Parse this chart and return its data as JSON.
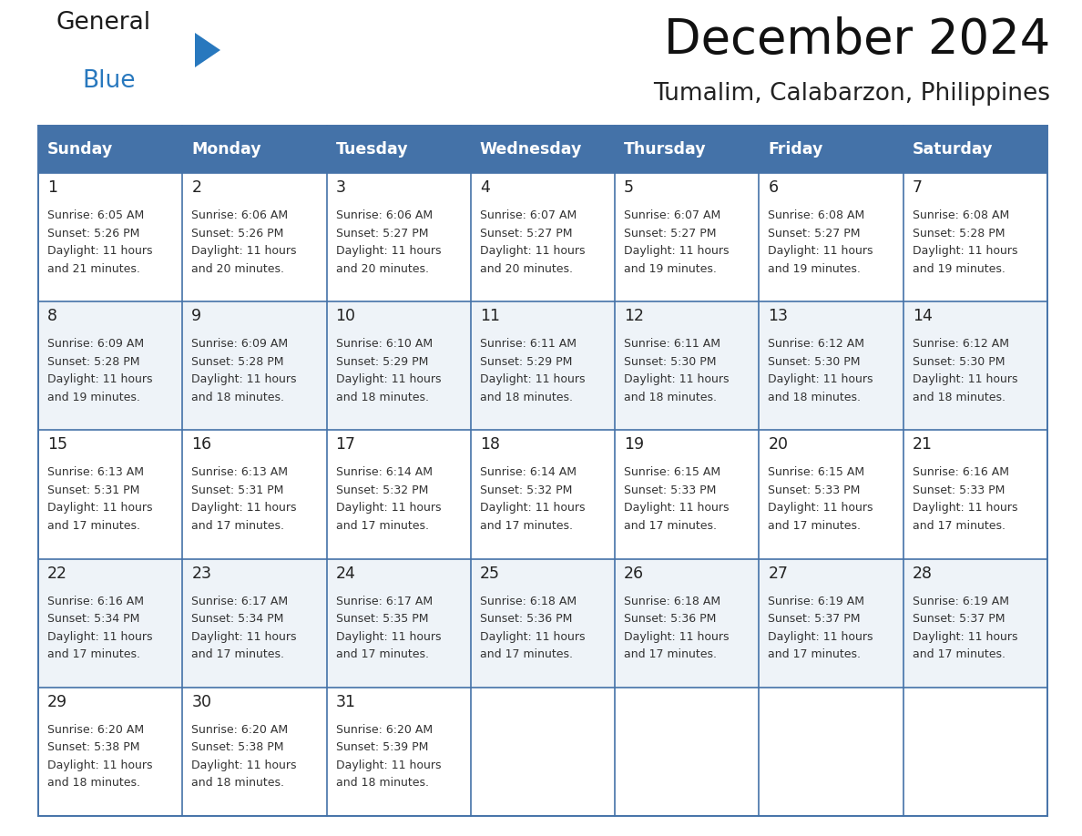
{
  "title": "December 2024",
  "subtitle": "Tumalim, Calabarzon, Philippines",
  "header_color": "#4472A8",
  "header_text_color": "#FFFFFF",
  "border_color": "#4472A8",
  "text_color": "#333333",
  "days_of_week": [
    "Sunday",
    "Monday",
    "Tuesday",
    "Wednesday",
    "Thursday",
    "Friday",
    "Saturday"
  ],
  "calendar_data": [
    [
      {
        "day": 1,
        "sunrise": "6:05 AM",
        "sunset": "5:26 PM",
        "daylight_hours": 11,
        "daylight_minutes": 21
      },
      {
        "day": 2,
        "sunrise": "6:06 AM",
        "sunset": "5:26 PM",
        "daylight_hours": 11,
        "daylight_minutes": 20
      },
      {
        "day": 3,
        "sunrise": "6:06 AM",
        "sunset": "5:27 PM",
        "daylight_hours": 11,
        "daylight_minutes": 20
      },
      {
        "day": 4,
        "sunrise": "6:07 AM",
        "sunset": "5:27 PM",
        "daylight_hours": 11,
        "daylight_minutes": 20
      },
      {
        "day": 5,
        "sunrise": "6:07 AM",
        "sunset": "5:27 PM",
        "daylight_hours": 11,
        "daylight_minutes": 19
      },
      {
        "day": 6,
        "sunrise": "6:08 AM",
        "sunset": "5:27 PM",
        "daylight_hours": 11,
        "daylight_minutes": 19
      },
      {
        "day": 7,
        "sunrise": "6:08 AM",
        "sunset": "5:28 PM",
        "daylight_hours": 11,
        "daylight_minutes": 19
      }
    ],
    [
      {
        "day": 8,
        "sunrise": "6:09 AM",
        "sunset": "5:28 PM",
        "daylight_hours": 11,
        "daylight_minutes": 19
      },
      {
        "day": 9,
        "sunrise": "6:09 AM",
        "sunset": "5:28 PM",
        "daylight_hours": 11,
        "daylight_minutes": 18
      },
      {
        "day": 10,
        "sunrise": "6:10 AM",
        "sunset": "5:29 PM",
        "daylight_hours": 11,
        "daylight_minutes": 18
      },
      {
        "day": 11,
        "sunrise": "6:11 AM",
        "sunset": "5:29 PM",
        "daylight_hours": 11,
        "daylight_minutes": 18
      },
      {
        "day": 12,
        "sunrise": "6:11 AM",
        "sunset": "5:30 PM",
        "daylight_hours": 11,
        "daylight_minutes": 18
      },
      {
        "day": 13,
        "sunrise": "6:12 AM",
        "sunset": "5:30 PM",
        "daylight_hours": 11,
        "daylight_minutes": 18
      },
      {
        "day": 14,
        "sunrise": "6:12 AM",
        "sunset": "5:30 PM",
        "daylight_hours": 11,
        "daylight_minutes": 18
      }
    ],
    [
      {
        "day": 15,
        "sunrise": "6:13 AM",
        "sunset": "5:31 PM",
        "daylight_hours": 11,
        "daylight_minutes": 17
      },
      {
        "day": 16,
        "sunrise": "6:13 AM",
        "sunset": "5:31 PM",
        "daylight_hours": 11,
        "daylight_minutes": 17
      },
      {
        "day": 17,
        "sunrise": "6:14 AM",
        "sunset": "5:32 PM",
        "daylight_hours": 11,
        "daylight_minutes": 17
      },
      {
        "day": 18,
        "sunrise": "6:14 AM",
        "sunset": "5:32 PM",
        "daylight_hours": 11,
        "daylight_minutes": 17
      },
      {
        "day": 19,
        "sunrise": "6:15 AM",
        "sunset": "5:33 PM",
        "daylight_hours": 11,
        "daylight_minutes": 17
      },
      {
        "day": 20,
        "sunrise": "6:15 AM",
        "sunset": "5:33 PM",
        "daylight_hours": 11,
        "daylight_minutes": 17
      },
      {
        "day": 21,
        "sunrise": "6:16 AM",
        "sunset": "5:33 PM",
        "daylight_hours": 11,
        "daylight_minutes": 17
      }
    ],
    [
      {
        "day": 22,
        "sunrise": "6:16 AM",
        "sunset": "5:34 PM",
        "daylight_hours": 11,
        "daylight_minutes": 17
      },
      {
        "day": 23,
        "sunrise": "6:17 AM",
        "sunset": "5:34 PM",
        "daylight_hours": 11,
        "daylight_minutes": 17
      },
      {
        "day": 24,
        "sunrise": "6:17 AM",
        "sunset": "5:35 PM",
        "daylight_hours": 11,
        "daylight_minutes": 17
      },
      {
        "day": 25,
        "sunrise": "6:18 AM",
        "sunset": "5:36 PM",
        "daylight_hours": 11,
        "daylight_minutes": 17
      },
      {
        "day": 26,
        "sunrise": "6:18 AM",
        "sunset": "5:36 PM",
        "daylight_hours": 11,
        "daylight_minutes": 17
      },
      {
        "day": 27,
        "sunrise": "6:19 AM",
        "sunset": "5:37 PM",
        "daylight_hours": 11,
        "daylight_minutes": 17
      },
      {
        "day": 28,
        "sunrise": "6:19 AM",
        "sunset": "5:37 PM",
        "daylight_hours": 11,
        "daylight_minutes": 17
      }
    ],
    [
      {
        "day": 29,
        "sunrise": "6:20 AM",
        "sunset": "5:38 PM",
        "daylight_hours": 11,
        "daylight_minutes": 18
      },
      {
        "day": 30,
        "sunrise": "6:20 AM",
        "sunset": "5:38 PM",
        "daylight_hours": 11,
        "daylight_minutes": 18
      },
      {
        "day": 31,
        "sunrise": "6:20 AM",
        "sunset": "5:39 PM",
        "daylight_hours": 11,
        "daylight_minutes": 18
      },
      null,
      null,
      null,
      null
    ]
  ],
  "logo_general_color": "#1a1a1a",
  "logo_blue_color": "#2878BE",
  "logo_triangle_color": "#2878BE",
  "fig_width": 11.88,
  "fig_height": 9.18,
  "dpi": 100
}
